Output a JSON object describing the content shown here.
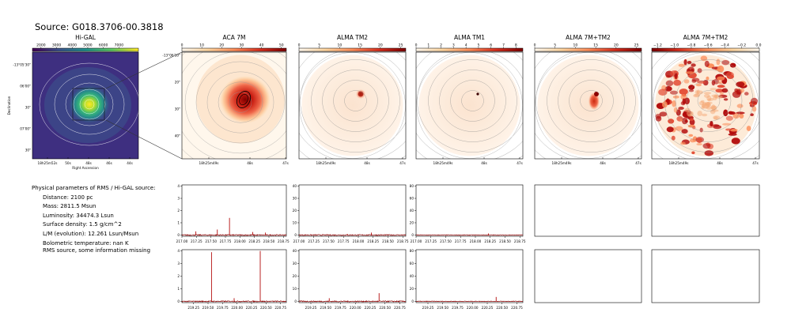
{
  "header": {
    "title": "Source: G018.3706-00.3818"
  },
  "info": {
    "heading": "Physical parameters of RMS / Hi-GAL source:",
    "lines": [
      "Distance: 2100 pc",
      "Mass: 2811.5 Msun",
      "Luminosity: 34474.3 Lsun",
      "Surface density: 1.5 g/cm^2",
      "L/M (evolution): 12.261 Lsun/Msun",
      "Bolometric temperature: nan K"
    ],
    "note": "RMS source, some information missing"
  },
  "colors": {
    "hot": "#b30c0c",
    "line": "#8b0000",
    "viridis_bg": "#3b2d7e",
    "contour": "#888888"
  },
  "chart_data": [
    {
      "type": "heatmap",
      "panel": "Hi-GAL",
      "title": "Hi-GAL",
      "colorbar": {
        "ticks": [
          "2000",
          "3000",
          "4000",
          "5000",
          "6000",
          "7000"
        ],
        "colormap": "viridis"
      },
      "xlabel": "Right Ascension",
      "ylabel": "Declination",
      "xticks": [
        "18h25m52s",
        "50s",
        "48s",
        "46s",
        "44s"
      ],
      "yticks": [
        "-13°05'30\"",
        "06'00\"",
        "30\"",
        "07'00\"",
        "30\""
      ]
    },
    {
      "type": "heatmap",
      "panel": "ACA 7M",
      "title": "ACA 7M",
      "colorbar": {
        "ticks": [
          "0",
          "10",
          "20",
          "30",
          "40",
          "50"
        ],
        "colormap": "OrRd"
      },
      "xticks": [
        "18h25m49s",
        "48s",
        "47s"
      ],
      "yticks": [
        "-13°06'10\"",
        "20\"",
        "30\"",
        "40\""
      ]
    },
    {
      "type": "heatmap",
      "panel": "ALMA TM2",
      "title": "ALMA TM2",
      "colorbar": {
        "ticks": [
          "0",
          "5",
          "10",
          "15",
          "20",
          "25"
        ],
        "colormap": "OrRd"
      },
      "xticks": [
        "18h25m49s",
        "48s",
        "47s"
      ]
    },
    {
      "type": "heatmap",
      "panel": "ALMA TM1",
      "title": "ALMA TM1",
      "colorbar": {
        "ticks": [
          "0",
          "1",
          "2",
          "3",
          "4",
          "5",
          "6",
          "7",
          "8"
        ],
        "colormap": "OrRd"
      },
      "xticks": [
        "18h25m49s",
        "48s",
        "47s"
      ]
    },
    {
      "type": "heatmap",
      "panel": "ALMA 7M+TM2",
      "title": "ALMA 7M+TM2",
      "colorbar": {
        "ticks": [
          "0",
          "5",
          "10",
          "15",
          "20",
          "25"
        ],
        "colormap": "OrRd"
      },
      "xticks": [
        "18h25m49s",
        "48s",
        "47s"
      ]
    },
    {
      "type": "heatmap",
      "panel": "ALMA 7M+TM2 residual",
      "title": "ALMA 7M+TM2",
      "colorbar": {
        "ticks": [
          "−1.2",
          "−1.0",
          "−0.8",
          "−0.6",
          "−0.4",
          "−0.2",
          "0.0"
        ],
        "colormap": "OrRd_r"
      },
      "xticks": [
        "18h25m49s",
        "48s",
        "47s"
      ]
    },
    {
      "type": "line",
      "panel": "spectrum ACA 7M spw1",
      "xticks": [
        "217.00",
        "217.25",
        "217.50",
        "217.75",
        "218.00",
        "218.25",
        "218.50",
        "218.75"
      ],
      "xlim": [
        217.0,
        218.8
      ],
      "yticks": [
        "0",
        "1",
        "2",
        "3",
        "4"
      ],
      "ylim": [
        -0.1,
        4.1
      ],
      "peaks": [
        {
          "x": 217.82,
          "y": 1.4
        },
        {
          "x": 217.61,
          "y": 0.45
        },
        {
          "x": 217.24,
          "y": 0.3
        },
        {
          "x": 218.22,
          "y": 0.25
        },
        {
          "x": 218.44,
          "y": 0.2
        }
      ]
    },
    {
      "type": "line",
      "panel": "spectrum ALMA TM2 spw1",
      "xticks": [
        "217.00",
        "217.25",
        "217.50",
        "217.75",
        "218.00",
        "218.25",
        "218.50",
        "218.75"
      ],
      "xlim": [
        217.0,
        218.8
      ],
      "yticks": [
        "0",
        "10",
        "20",
        "30",
        "40"
      ],
      "ylim": [
        -1,
        41
      ],
      "peaks": [
        {
          "x": 218.22,
          "y": 2.0
        },
        {
          "x": 217.82,
          "y": 0.8
        }
      ]
    },
    {
      "type": "line",
      "panel": "spectrum ALMA TM1 spw1",
      "xticks": [
        "217.00",
        "217.25",
        "217.50",
        "217.75",
        "218.00",
        "218.25",
        "218.50",
        "218.75"
      ],
      "xlim": [
        217.0,
        218.8
      ],
      "yticks": [
        "0",
        "20",
        "40",
        "60",
        "80"
      ],
      "ylim": [
        -2,
        82
      ],
      "peaks": [
        {
          "x": 218.22,
          "y": 2.5
        }
      ]
    },
    {
      "type": "line",
      "panel": "spectrum ACA 7M spw2",
      "xticks": [
        "219.25",
        "219.50",
        "219.75",
        "220.00",
        "220.25",
        "220.50",
        "220.75"
      ],
      "xlim": [
        219.05,
        220.85
      ],
      "yticks": [
        "0",
        "1",
        "2",
        "3",
        "4"
      ],
      "ylim": [
        -0.1,
        4.1
      ],
      "peaks": [
        {
          "x": 219.56,
          "y": 3.9
        },
        {
          "x": 220.4,
          "y": 4.0
        },
        {
          "x": 219.95,
          "y": 0.25
        }
      ]
    },
    {
      "type": "line",
      "panel": "spectrum ALMA TM2 spw2",
      "xticks": [
        "219.25",
        "219.50",
        "219.75",
        "220.00",
        "220.25",
        "220.50",
        "220.75"
      ],
      "xlim": [
        219.05,
        220.85
      ],
      "yticks": [
        "0",
        "10",
        "20",
        "30",
        "40"
      ],
      "ylim": [
        -1,
        41
      ],
      "peaks": [
        {
          "x": 220.4,
          "y": 6.5
        },
        {
          "x": 219.56,
          "y": 2.5
        }
      ]
    },
    {
      "type": "line",
      "panel": "spectrum ALMA TM1 spw2",
      "xticks": [
        "219.25",
        "219.50",
        "219.75",
        "220.00",
        "220.25",
        "220.50",
        "220.75"
      ],
      "xlim": [
        219.05,
        220.85
      ],
      "yticks": [
        "0",
        "20",
        "40",
        "60",
        "80"
      ],
      "ylim": [
        -2,
        82
      ],
      "peaks": [
        {
          "x": 220.4,
          "y": 7.0
        }
      ]
    }
  ]
}
